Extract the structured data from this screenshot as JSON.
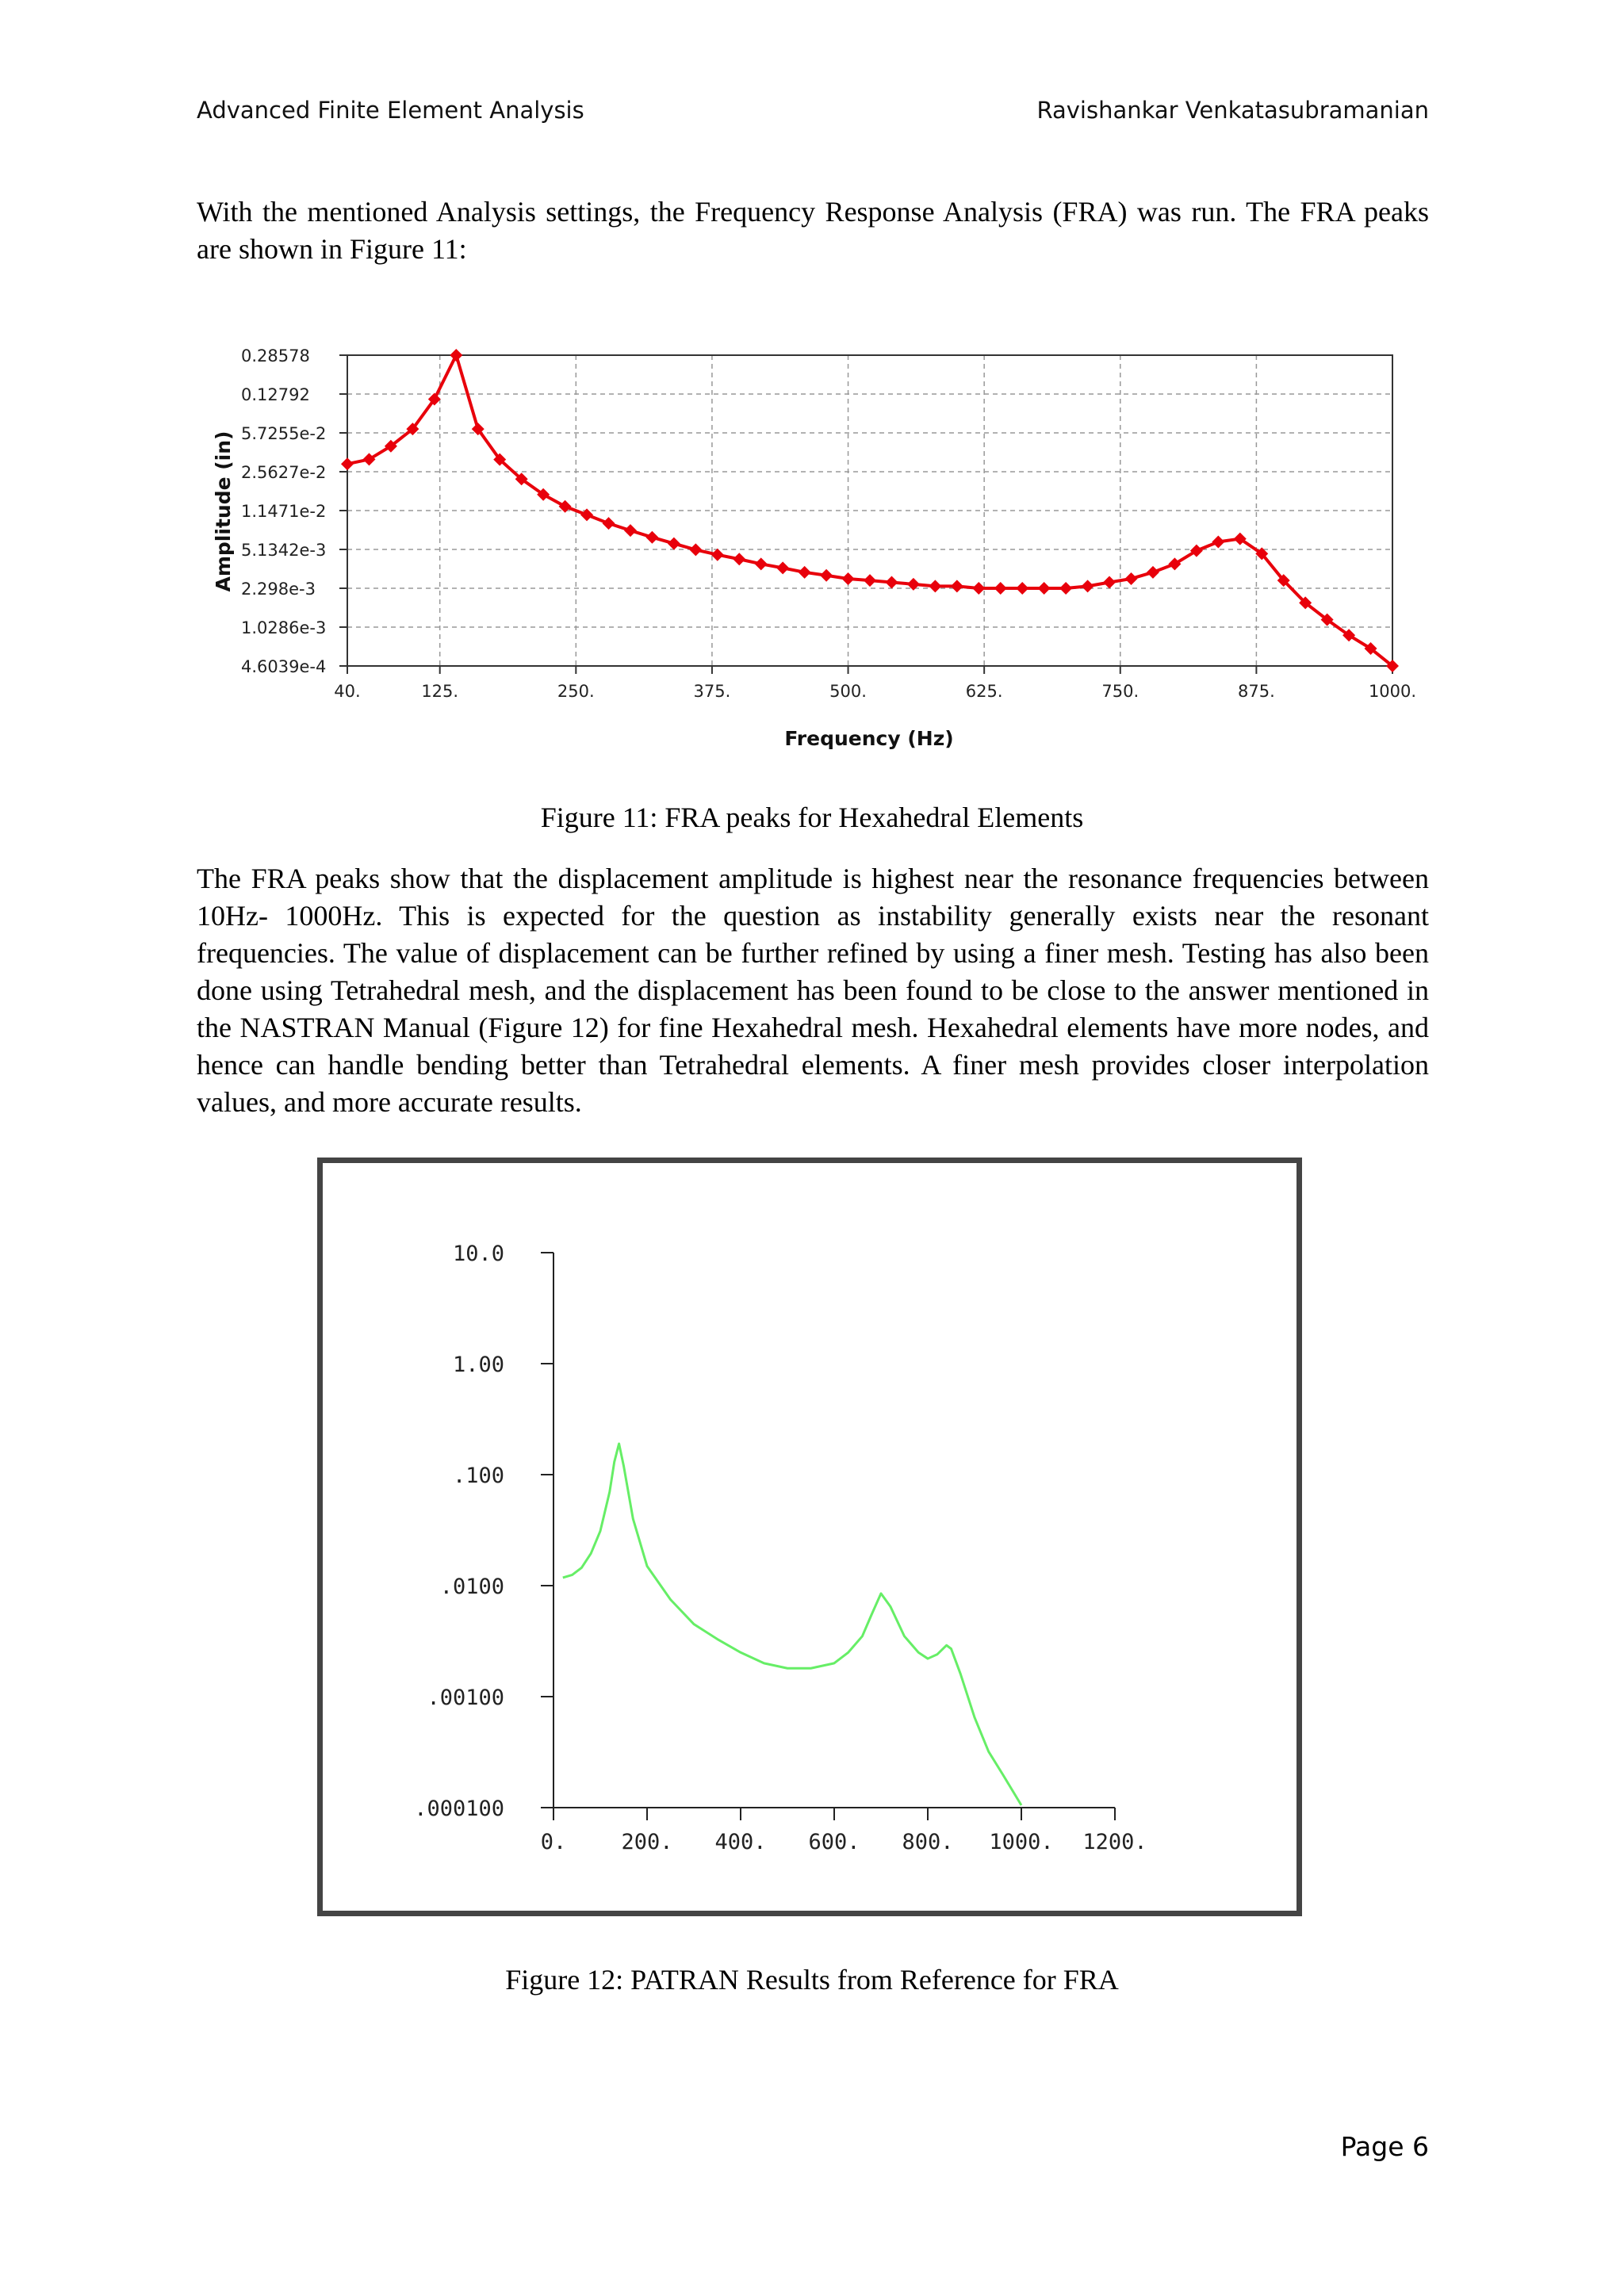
{
  "header": {
    "left": "Advanced Finite Element Analysis",
    "right": "Ravishankar Venkatasubramanian"
  },
  "paragraphs": {
    "intro": "With the mentioned Analysis settings, the Frequency Response Analysis (FRA) was run. The FRA peaks are shown in Figure 11:",
    "discussion": "The FRA peaks show that the displacement amplitude is highest near the resonance frequencies between 10Hz- 1000Hz. This is expected for the question as instability generally exists near the resonant frequencies. The value of displacement can be further refined by using a finer mesh. Testing has also been done using Tetrahedral mesh, and the displacement has been found to be close to the answer mentioned in the NASTRAN Manual (Figure 12) for fine Hexahedral mesh. Hexahedral elements have more nodes, and hence can handle bending better than Tetrahedral elements. A finer mesh provides closer interpolation values, and more accurate results."
  },
  "captions": {
    "figure11": "Figure 11: FRA peaks for Hexahedral Elements",
    "figure12": "Figure 12: PATRAN Results from Reference for FRA"
  },
  "page_number": "Page 6",
  "chart_data": [
    {
      "type": "line",
      "title": "",
      "xlabel": "Frequency (Hz)",
      "ylabel": "Amplitude (in)",
      "x_scale": "linear",
      "y_scale": "log",
      "xlim": [
        40,
        1000
      ],
      "ylim": [
        0.00046039,
        0.28578
      ],
      "x_ticks": [
        "40.",
        "125.",
        "250.",
        "375.",
        "500.",
        "625.",
        "750.",
        "875.",
        "1000."
      ],
      "x_tick_values": [
        40,
        125,
        250,
        375,
        500,
        625,
        750,
        875,
        1000
      ],
      "y_ticks": [
        "0.28578",
        "0.12792",
        "5.7255e-2",
        "2.5627e-2",
        "1.1471e-2",
        "5.1342e-3",
        "2.298e-3",
        "1.0286e-3",
        "4.6039e-4"
      ],
      "y_tick_values": [
        0.28578,
        0.12792,
        0.057255,
        0.025627,
        0.011471,
        0.0051342,
        0.002298,
        0.0010286,
        0.00046039
      ],
      "grid": true,
      "color": "#e8000b",
      "marker": "diamond",
      "series": [
        {
          "x": [
            40,
            60,
            80,
            100,
            120,
            140,
            160,
            180,
            200,
            220,
            240,
            260,
            280,
            300,
            320,
            340,
            360,
            380,
            400,
            420,
            440,
            460,
            480,
            500,
            520,
            540,
            560,
            580,
            600,
            620,
            640,
            660,
            680,
            700,
            720,
            740,
            760,
            780,
            800,
            820,
            840,
            860,
            880,
            900,
            920,
            940,
            960,
            980,
            1000
          ],
          "y": [
            0.0301,
            0.0331,
            0.0435,
            0.062,
            0.115,
            0.2858,
            0.062,
            0.033,
            0.022,
            0.016,
            0.0125,
            0.0105,
            0.0088,
            0.0076,
            0.0066,
            0.0058,
            0.0051,
            0.0046,
            0.0042,
            0.0038,
            0.0035,
            0.0032,
            0.003,
            0.0028,
            0.0027,
            0.0026,
            0.0025,
            0.0024,
            0.0024,
            0.0023,
            0.0023,
            0.0023,
            0.0023,
            0.0023,
            0.0024,
            0.0026,
            0.0028,
            0.0032,
            0.0038,
            0.005,
            0.006,
            0.0064,
            0.0047,
            0.0027,
            0.0017,
            0.0012,
            0.00087,
            0.00066,
            0.00046
          ]
        }
      ]
    },
    {
      "type": "line",
      "title": "",
      "xlabel": "",
      "ylabel": "",
      "x_scale": "linear",
      "y_scale": "log",
      "xlim": [
        0,
        1200
      ],
      "ylim": [
        0.0001,
        10
      ],
      "x_ticks": [
        "0.",
        "200.",
        "400.",
        "600.",
        "800.",
        "1000.",
        "1200."
      ],
      "x_tick_values": [
        0,
        200,
        400,
        600,
        800,
        1000,
        1200
      ],
      "y_ticks": [
        "10.0",
        "1.00",
        ".100",
        ".0100",
        ".00100",
        ".000100"
      ],
      "y_tick_values": [
        10,
        1,
        0.1,
        0.01,
        0.001,
        0.0001
      ],
      "grid": false,
      "color": "#66ee66",
      "series": [
        {
          "x": [
            20,
            40,
            60,
            80,
            100,
            120,
            130,
            140,
            150,
            170,
            200,
            250,
            300,
            350,
            400,
            450,
            500,
            550,
            600,
            630,
            660,
            680,
            700,
            720,
            750,
            780,
            800,
            820,
            840,
            850,
            870,
            900,
            930,
            960,
            1000
          ],
          "y": [
            0.0118,
            0.0125,
            0.0145,
            0.0195,
            0.031,
            0.07,
            0.13,
            0.19,
            0.12,
            0.04,
            0.015,
            0.0075,
            0.0045,
            0.0033,
            0.0025,
            0.002,
            0.0018,
            0.0018,
            0.002,
            0.0025,
            0.0035,
            0.0055,
            0.0085,
            0.0065,
            0.0035,
            0.0025,
            0.0022,
            0.0024,
            0.0029,
            0.0027,
            0.0016,
            0.00065,
            0.00032,
            0.0002,
            0.000105
          ]
        }
      ]
    }
  ]
}
